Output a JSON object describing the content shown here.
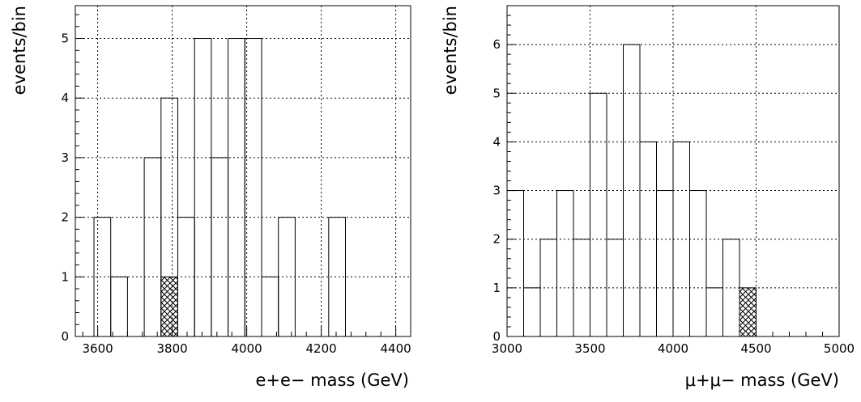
{
  "chart_data": [
    {
      "type": "bar",
      "xlabel": "e+e− mass (GeV)",
      "ylabel": "events/bin",
      "xlim": [
        3540,
        4440
      ],
      "ylim": [
        0,
        5.55
      ],
      "x_ticks": [
        "3600",
        "3800",
        "4000",
        "4200",
        "4400"
      ],
      "x_tick_values": [
        3600,
        3800,
        4000,
        4200,
        4400
      ],
      "y_ticks": [
        "0",
        "1",
        "2",
        "3",
        "4",
        "5"
      ],
      "y_tick_values": [
        0,
        1,
        2,
        3,
        4,
        5
      ],
      "grid": true,
      "series": [
        {
          "style": "histogram-outline",
          "bin_edges": [
            3590,
            3635,
            3680,
            3725,
            3770,
            3815,
            3860,
            3905,
            3950,
            3995,
            4040,
            4085,
            4130,
            4175,
            4220,
            4265
          ],
          "values": [
            2,
            1,
            0,
            3,
            4,
            2,
            5,
            3,
            5,
            5,
            1,
            2,
            0,
            0,
            2
          ]
        },
        {
          "style": "crosshatch-filled",
          "bin_edges": [
            3770,
            3815
          ],
          "values": [
            1
          ]
        }
      ]
    },
    {
      "type": "bar",
      "xlabel": "μ+μ− mass (GeV)",
      "ylabel": "events/bin",
      "xlim": [
        3000,
        5000
      ],
      "ylim": [
        0,
        6.8
      ],
      "x_ticks": [
        "3000",
        "3500",
        "4000",
        "4500",
        "5000"
      ],
      "x_tick_values": [
        3000,
        3500,
        4000,
        4500,
        5000
      ],
      "y_ticks": [
        "0",
        "1",
        "2",
        "3",
        "4",
        "5",
        "6"
      ],
      "y_tick_values": [
        0,
        1,
        2,
        3,
        4,
        5,
        6
      ],
      "grid": true,
      "series": [
        {
          "style": "histogram-outline",
          "bin_edges": [
            3000,
            3100,
            3200,
            3300,
            3400,
            3500,
            3600,
            3700,
            3800,
            3900,
            4000,
            4100,
            4200,
            4300,
            4400,
            4500,
            4600,
            4700,
            4800,
            4900,
            5000
          ],
          "values": [
            3,
            1,
            2,
            3,
            2,
            5,
            2,
            6,
            4,
            3,
            4,
            3,
            1,
            2,
            0,
            0,
            0,
            0,
            0,
            0
          ]
        },
        {
          "style": "crosshatch-filled",
          "bin_edges": [
            4400,
            4500
          ],
          "values": [
            1
          ]
        }
      ]
    }
  ]
}
